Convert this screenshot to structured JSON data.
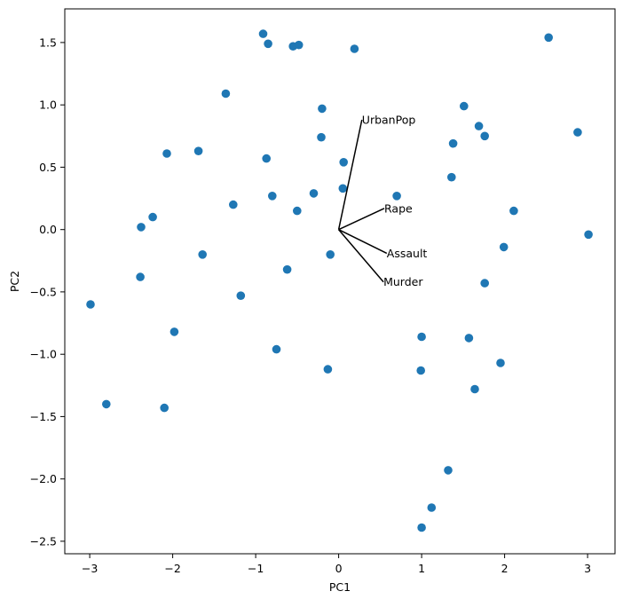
{
  "chart_data": {
    "type": "scatter",
    "xlabel": "PC1",
    "ylabel": "PC2",
    "xlim": [
      -3.3,
      3.33
    ],
    "ylim": [
      -2.6,
      1.77
    ],
    "x_ticks": [
      -3,
      -2,
      -1,
      0,
      1,
      2,
      3
    ],
    "y_ticks": [
      -2.5,
      -2.0,
      -1.5,
      -1.0,
      -0.5,
      0.0,
      0.5,
      1.0,
      1.5
    ],
    "x_tick_labels": [
      "−3",
      "−2",
      "−1",
      "0",
      "1",
      "2",
      "3"
    ],
    "y_tick_labels": [
      "−2.5",
      "−2.0",
      "−1.5",
      "−1.0",
      "−0.5",
      "0.0",
      "0.5",
      "1.0",
      "1.5"
    ],
    "grid": false,
    "marker_color": "#1f77b4",
    "points": [
      {
        "x": -0.91,
        "y": 1.57
      },
      {
        "x": -0.85,
        "y": 1.49
      },
      {
        "x": -0.55,
        "y": 1.47
      },
      {
        "x": -0.48,
        "y": 1.48
      },
      {
        "x": 0.19,
        "y": 1.45
      },
      {
        "x": 2.53,
        "y": 1.54
      },
      {
        "x": -1.36,
        "y": 1.09
      },
      {
        "x": -0.2,
        "y": 0.97
      },
      {
        "x": 1.51,
        "y": 0.99
      },
      {
        "x": -0.21,
        "y": 0.74
      },
      {
        "x": 1.69,
        "y": 0.83
      },
      {
        "x": 1.76,
        "y": 0.75
      },
      {
        "x": 2.88,
        "y": 0.78
      },
      {
        "x": 1.38,
        "y": 0.69
      },
      {
        "x": -2.07,
        "y": 0.61
      },
      {
        "x": -1.69,
        "y": 0.63
      },
      {
        "x": -0.87,
        "y": 0.57
      },
      {
        "x": 0.06,
        "y": 0.54
      },
      {
        "x": 1.36,
        "y": 0.42
      },
      {
        "x": 0.05,
        "y": 0.33
      },
      {
        "x": -0.8,
        "y": 0.27
      },
      {
        "x": -0.3,
        "y": 0.29
      },
      {
        "x": 0.7,
        "y": 0.27
      },
      {
        "x": -1.27,
        "y": 0.2
      },
      {
        "x": -0.5,
        "y": 0.15
      },
      {
        "x": 2.11,
        "y": 0.15
      },
      {
        "x": -2.24,
        "y": 0.1
      },
      {
        "x": -2.38,
        "y": 0.02
      },
      {
        "x": 3.01,
        "y": -0.04
      },
      {
        "x": 1.99,
        "y": -0.14
      },
      {
        "x": -1.64,
        "y": -0.2
      },
      {
        "x": -0.1,
        "y": -0.2
      },
      {
        "x": -2.39,
        "y": -0.38
      },
      {
        "x": -0.62,
        "y": -0.32
      },
      {
        "x": 1.76,
        "y": -0.43
      },
      {
        "x": -1.18,
        "y": -0.53
      },
      {
        "x": -2.99,
        "y": -0.6
      },
      {
        "x": -1.98,
        "y": -0.82
      },
      {
        "x": 1.0,
        "y": -0.86
      },
      {
        "x": 1.57,
        "y": -0.87
      },
      {
        "x": -0.75,
        "y": -0.96
      },
      {
        "x": 1.95,
        "y": -1.07
      },
      {
        "x": -0.13,
        "y": -1.12
      },
      {
        "x": 0.99,
        "y": -1.13
      },
      {
        "x": 1.64,
        "y": -1.28
      },
      {
        "x": -2.8,
        "y": -1.4
      },
      {
        "x": -2.1,
        "y": -1.43
      },
      {
        "x": 1.32,
        "y": -1.93
      },
      {
        "x": 1.12,
        "y": -2.23
      },
      {
        "x": 1.0,
        "y": -2.39
      }
    ],
    "loadings": [
      {
        "name": "UrbanPop",
        "x": 0.28,
        "y": 0.88
      },
      {
        "name": "Rape",
        "x": 0.55,
        "y": 0.17
      },
      {
        "name": "Assault",
        "x": 0.58,
        "y": -0.19
      },
      {
        "name": "Murder",
        "x": 0.54,
        "y": -0.42
      }
    ]
  }
}
